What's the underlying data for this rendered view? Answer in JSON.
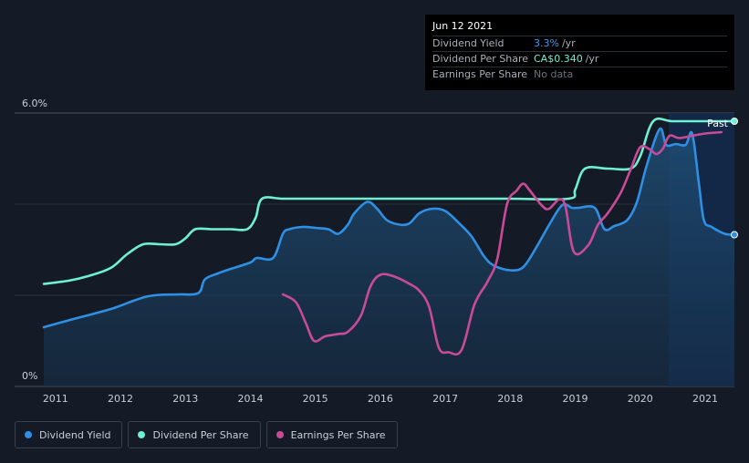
{
  "tooltip": {
    "date": "Jun 12 2021",
    "rows": [
      {
        "label": "Dividend Yield",
        "value": "3.3%",
        "unit": "/yr",
        "color": "#3b9cf0"
      },
      {
        "label": "Dividend Per Share",
        "value": "CA$0.340",
        "unit": "/yr",
        "color": "#6ff0d2"
      },
      {
        "label": "Earnings Per Share",
        "value": "No data",
        "unit": "",
        "color": "#6b717b"
      }
    ]
  },
  "past_label": "Past",
  "legend": [
    {
      "label": "Dividend Yield",
      "color": "#2f8fe3"
    },
    {
      "label": "Dividend Per Share",
      "color": "#6ff0d2"
    },
    {
      "label": "Earnings Per Share",
      "color": "#c94b97"
    }
  ],
  "chart_data": {
    "type": "line",
    "title": "",
    "xlabel": "",
    "ylabel": "",
    "x_ticks": [
      "2011",
      "2012",
      "2013",
      "2014",
      "2015",
      "2016",
      "2017",
      "2018",
      "2019",
      "2020",
      "2021"
    ],
    "y_ticks": [
      "6.0%",
      "0%"
    ],
    "ylim": [
      0,
      6.0
    ],
    "xlim": [
      2010.82,
      2021.45
    ],
    "grid": true,
    "series": [
      {
        "name": "Dividend Yield",
        "color": "#2f8fe3",
        "area": true,
        "points": [
          [
            2010.82,
            1.3
          ],
          [
            2011.2,
            1.45
          ],
          [
            2011.6,
            1.6
          ],
          [
            2011.9,
            1.72
          ],
          [
            2012.2,
            1.88
          ],
          [
            2012.4,
            1.97
          ],
          [
            2012.6,
            2.01
          ],
          [
            2012.9,
            2.02
          ],
          [
            2013.2,
            2.05
          ],
          [
            2013.3,
            2.35
          ],
          [
            2013.5,
            2.48
          ],
          [
            2013.7,
            2.58
          ],
          [
            2014.0,
            2.72
          ],
          [
            2014.1,
            2.82
          ],
          [
            2014.35,
            2.82
          ],
          [
            2014.5,
            3.35
          ],
          [
            2014.6,
            3.45
          ],
          [
            2014.8,
            3.5
          ],
          [
            2015.0,
            3.48
          ],
          [
            2015.2,
            3.45
          ],
          [
            2015.35,
            3.35
          ],
          [
            2015.5,
            3.55
          ],
          [
            2015.6,
            3.8
          ],
          [
            2015.8,
            4.05
          ],
          [
            2015.95,
            3.9
          ],
          [
            2016.1,
            3.65
          ],
          [
            2016.3,
            3.55
          ],
          [
            2016.45,
            3.58
          ],
          [
            2016.6,
            3.8
          ],
          [
            2016.8,
            3.9
          ],
          [
            2017.0,
            3.85
          ],
          [
            2017.2,
            3.6
          ],
          [
            2017.4,
            3.3
          ],
          [
            2017.6,
            2.85
          ],
          [
            2017.75,
            2.65
          ],
          [
            2018.0,
            2.55
          ],
          [
            2018.2,
            2.62
          ],
          [
            2018.4,
            3.05
          ],
          [
            2018.6,
            3.55
          ],
          [
            2018.8,
            3.98
          ],
          [
            2018.95,
            3.92
          ],
          [
            2019.05,
            3.92
          ],
          [
            2019.3,
            3.92
          ],
          [
            2019.45,
            3.45
          ],
          [
            2019.6,
            3.52
          ],
          [
            2019.8,
            3.65
          ],
          [
            2019.95,
            4.05
          ],
          [
            2020.1,
            4.85
          ],
          [
            2020.3,
            5.65
          ],
          [
            2020.4,
            5.3
          ],
          [
            2020.55,
            5.32
          ],
          [
            2020.7,
            5.3
          ],
          [
            2020.8,
            5.55
          ],
          [
            2020.9,
            4.5
          ],
          [
            2020.98,
            3.65
          ],
          [
            2021.1,
            3.5
          ],
          [
            2021.3,
            3.35
          ],
          [
            2021.45,
            3.33
          ]
        ]
      },
      {
        "name": "Dividend Per Share",
        "color": "#6ff0d2",
        "area": false,
        "points": [
          [
            2010.82,
            2.25
          ],
          [
            2011.2,
            2.32
          ],
          [
            2011.5,
            2.42
          ],
          [
            2011.85,
            2.6
          ],
          [
            2012.1,
            2.9
          ],
          [
            2012.35,
            3.12
          ],
          [
            2012.6,
            3.12
          ],
          [
            2012.85,
            3.12
          ],
          [
            2013.0,
            3.25
          ],
          [
            2013.15,
            3.45
          ],
          [
            2013.4,
            3.45
          ],
          [
            2013.7,
            3.45
          ],
          [
            2013.95,
            3.45
          ],
          [
            2014.08,
            3.7
          ],
          [
            2014.18,
            4.12
          ],
          [
            2014.5,
            4.12
          ],
          [
            2015.0,
            4.12
          ],
          [
            2016.0,
            4.12
          ],
          [
            2017.0,
            4.12
          ],
          [
            2018.0,
            4.12
          ],
          [
            2018.9,
            4.12
          ],
          [
            2019.0,
            4.32
          ],
          [
            2019.15,
            4.78
          ],
          [
            2019.5,
            4.78
          ],
          [
            2019.85,
            4.78
          ],
          [
            2020.0,
            5.05
          ],
          [
            2020.2,
            5.82
          ],
          [
            2020.5,
            5.82
          ],
          [
            2021.0,
            5.82
          ],
          [
            2021.45,
            5.82
          ]
        ]
      },
      {
        "name": "Earnings Per Share",
        "color": "#c94b97",
        "area": false,
        "points": [
          [
            2014.5,
            2.02
          ],
          [
            2014.7,
            1.85
          ],
          [
            2014.85,
            1.4
          ],
          [
            2014.98,
            1.0
          ],
          [
            2015.15,
            1.1
          ],
          [
            2015.35,
            1.15
          ],
          [
            2015.5,
            1.2
          ],
          [
            2015.7,
            1.55
          ],
          [
            2015.85,
            2.2
          ],
          [
            2016.0,
            2.45
          ],
          [
            2016.2,
            2.42
          ],
          [
            2016.45,
            2.25
          ],
          [
            2016.6,
            2.1
          ],
          [
            2016.75,
            1.75
          ],
          [
            2016.9,
            0.85
          ],
          [
            2017.05,
            0.75
          ],
          [
            2017.25,
            0.8
          ],
          [
            2017.45,
            1.8
          ],
          [
            2017.65,
            2.3
          ],
          [
            2017.8,
            2.8
          ],
          [
            2017.95,
            4.0
          ],
          [
            2018.1,
            4.3
          ],
          [
            2018.2,
            4.45
          ],
          [
            2018.3,
            4.3
          ],
          [
            2018.5,
            3.95
          ],
          [
            2018.6,
            3.9
          ],
          [
            2018.75,
            4.1
          ],
          [
            2018.85,
            3.95
          ],
          [
            2018.98,
            2.95
          ],
          [
            2019.2,
            3.1
          ],
          [
            2019.35,
            3.55
          ],
          [
            2019.5,
            3.8
          ],
          [
            2019.7,
            4.25
          ],
          [
            2019.85,
            4.75
          ],
          [
            2020.0,
            5.25
          ],
          [
            2020.15,
            5.2
          ],
          [
            2020.25,
            5.1
          ],
          [
            2020.35,
            5.22
          ],
          [
            2020.45,
            5.5
          ],
          [
            2020.6,
            5.45
          ],
          [
            2020.8,
            5.5
          ],
          [
            2021.0,
            5.55
          ],
          [
            2021.25,
            5.58
          ]
        ]
      }
    ]
  }
}
